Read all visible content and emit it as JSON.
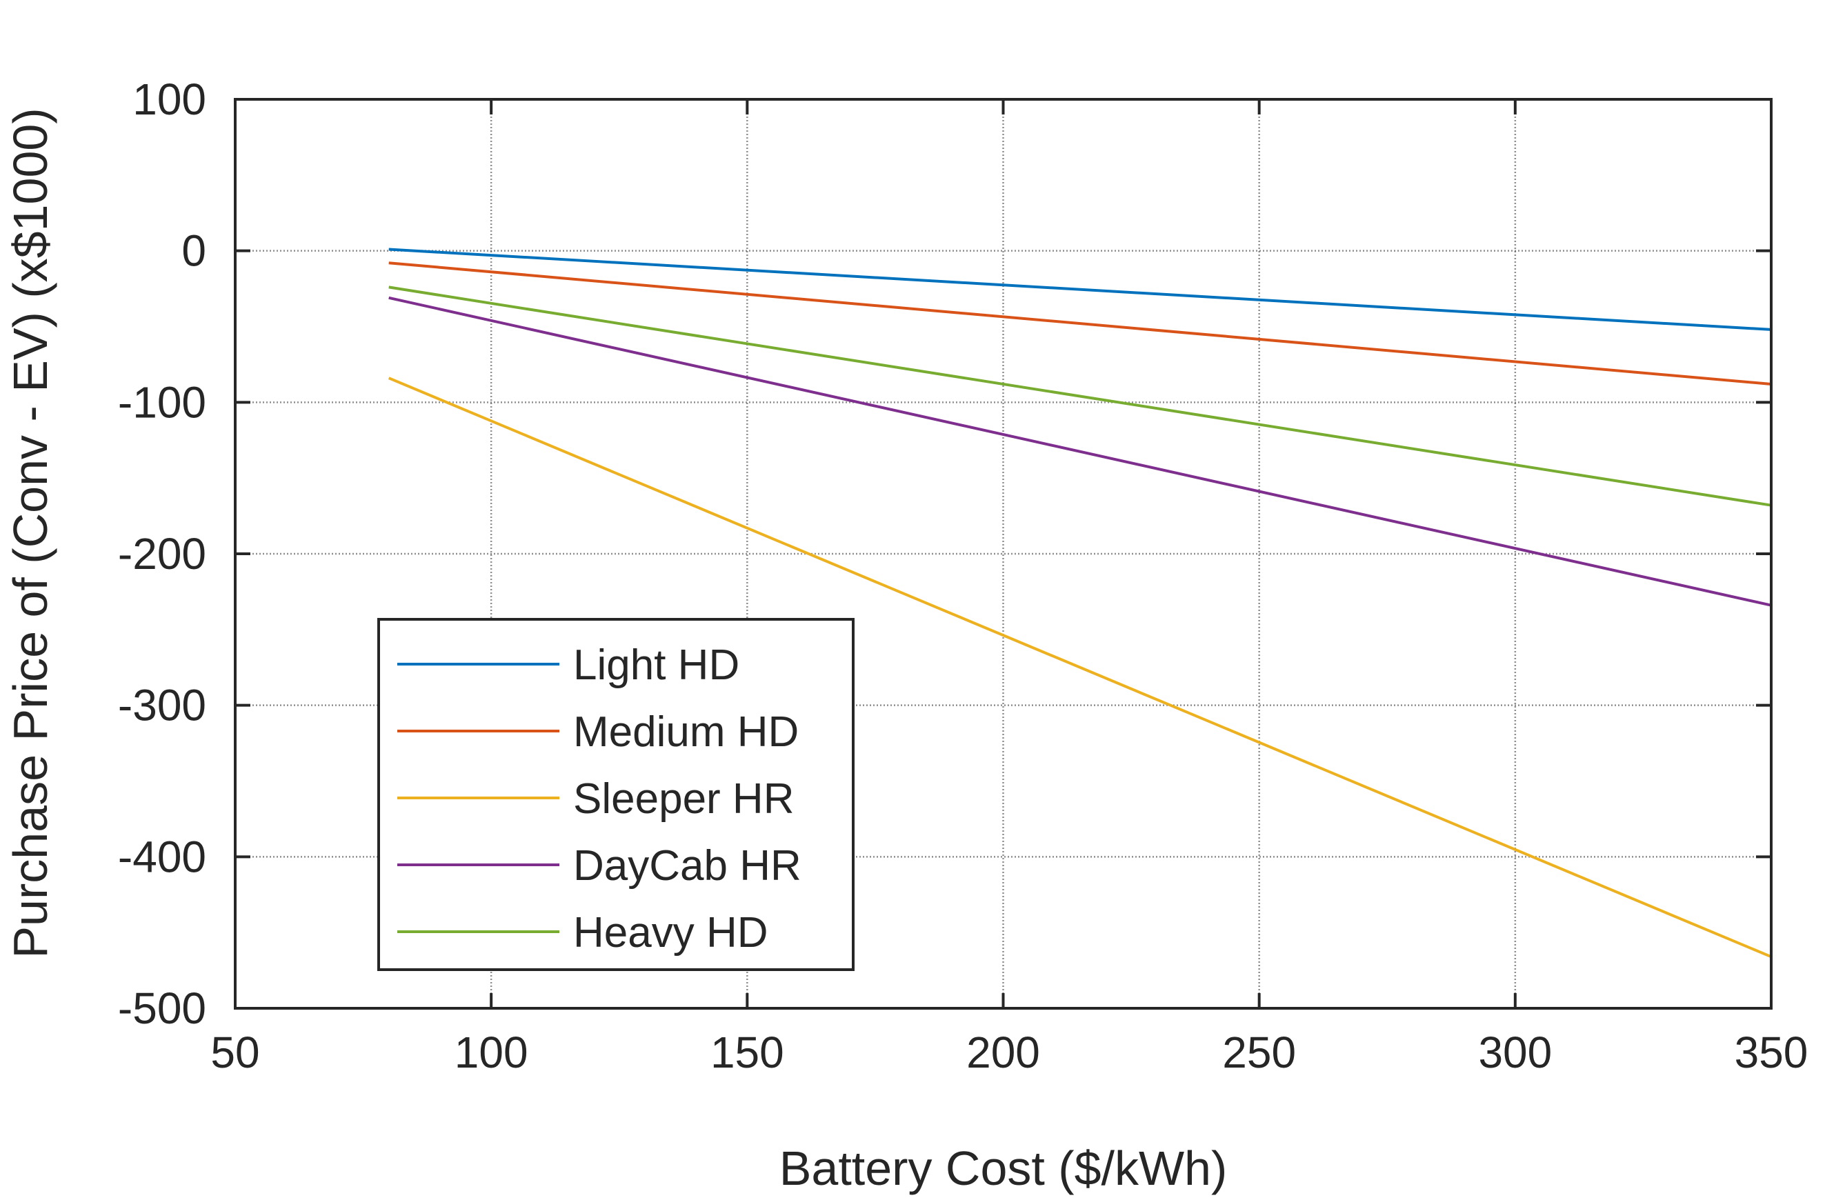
{
  "chart_data": {
    "type": "line",
    "title": "",
    "xlabel": "Battery Cost ($/kWh)",
    "ylabel": "Purchase Price of (Conv - EV)  (x$1000)",
    "xlim": [
      50,
      350
    ],
    "ylim": [
      -500,
      100
    ],
    "xticks": [
      50,
      100,
      150,
      200,
      250,
      300,
      350
    ],
    "yticks": [
      100,
      0,
      -100,
      -200,
      -300,
      -400,
      -500
    ],
    "xtick_labels": [
      "50",
      "100",
      "150",
      "200",
      "250",
      "300",
      "350"
    ],
    "ytick_labels": [
      "100",
      "0",
      "-100",
      "-200",
      "-300",
      "-400",
      "-500"
    ],
    "grid": "dotted",
    "legend_position": "bottom-left",
    "x": [
      80,
      350
    ],
    "series": [
      {
        "name": "Light HD",
        "color": "#0072BD",
        "values": [
          1,
          -52
        ]
      },
      {
        "name": "Medium HD",
        "color": "#D95319",
        "values": [
          -8,
          -88
        ]
      },
      {
        "name": "Sleeper HR",
        "color": "#EDB120",
        "values": [
          -84,
          -466
        ]
      },
      {
        "name": "DayCab HR",
        "color": "#7E2F8E",
        "values": [
          -31,
          -234
        ]
      },
      {
        "name": "Heavy HD",
        "color": "#77AC30",
        "values": [
          -24,
          -168
        ]
      }
    ]
  }
}
